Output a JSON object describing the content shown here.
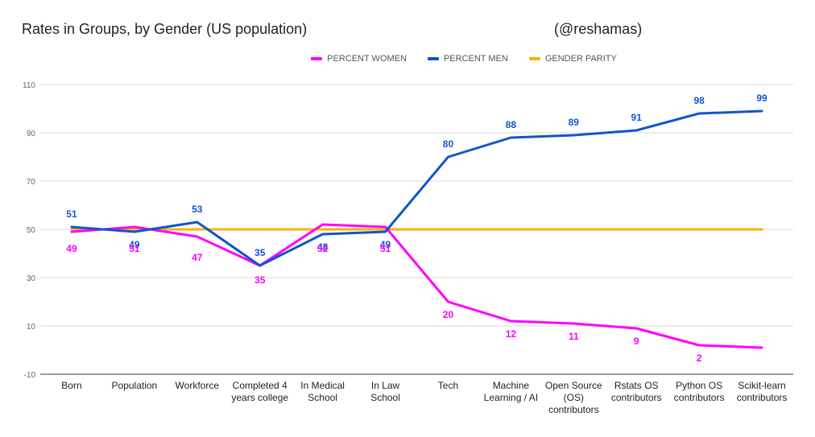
{
  "header": {
    "title": "Rates in Groups, by Gender (US population)",
    "credit": "(@reshamas)"
  },
  "chart_data": {
    "type": "line",
    "title": "Rates in Groups, by Gender (US population)",
    "xlabel": "",
    "ylabel": "",
    "ylim": [
      -10,
      110
    ],
    "yticks": [
      -10,
      10,
      30,
      50,
      70,
      90,
      110
    ],
    "grid": true,
    "legend_position": "top",
    "categories": [
      [
        "Born"
      ],
      [
        "Population"
      ],
      [
        "Workforce"
      ],
      [
        "Completed 4",
        "years college"
      ],
      [
        "In Medical",
        "School"
      ],
      [
        "In Law",
        "School"
      ],
      [
        "Tech"
      ],
      [
        "Machine",
        "Learning / AI"
      ],
      [
        "Open Source",
        "(OS)",
        "contributors"
      ],
      [
        "Rstats OS",
        "contributors"
      ],
      [
        "Python OS",
        "contributors"
      ],
      [
        "Scikit-learn",
        "contributors"
      ]
    ],
    "series": [
      {
        "name": "PERCENT WOMEN",
        "color": "#ff00ff",
        "values": [
          49,
          51,
          47,
          35,
          52,
          51,
          20,
          12,
          11,
          9,
          2,
          1
        ],
        "labels": [
          "49",
          "51",
          "47",
          "35",
          "52",
          "51",
          "20",
          "12",
          "11",
          "9",
          "2",
          ""
        ]
      },
      {
        "name": "PERCENT MEN",
        "color": "#1155cc",
        "values": [
          51,
          49,
          53,
          35,
          48,
          49,
          80,
          88,
          89,
          91,
          98,
          99
        ],
        "labels": [
          "51",
          "49",
          "53",
          "35",
          "48",
          "49",
          "80",
          "88",
          "89",
          "91",
          "98",
          "99"
        ]
      },
      {
        "name": "GENDER PARITY",
        "color": "#f4b400",
        "values": [
          50,
          50,
          50,
          50,
          50,
          50,
          50,
          50,
          50,
          50,
          50,
          50
        ],
        "labels": []
      }
    ]
  }
}
